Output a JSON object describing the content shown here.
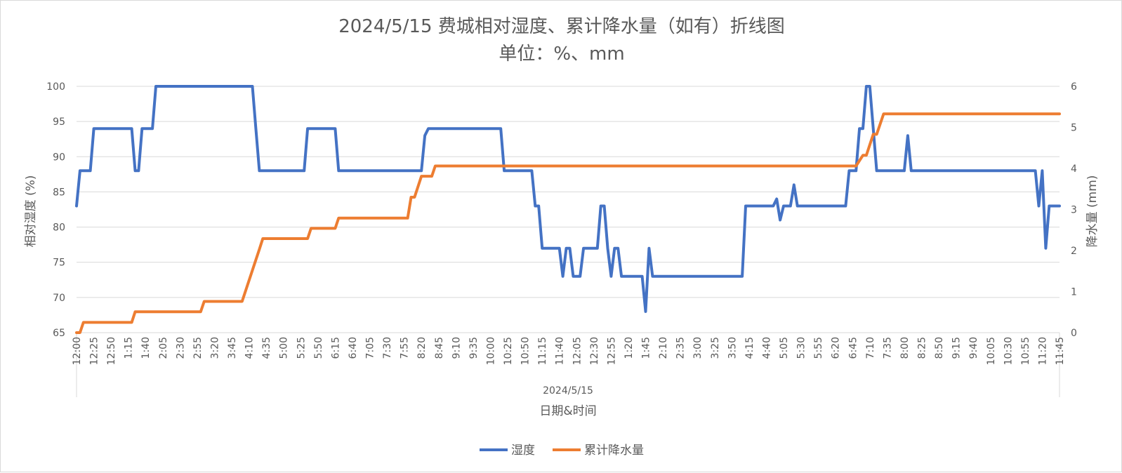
{
  "chart_data": {
    "type": "line",
    "title": "2024/5/15 费城相对湿度、累计降水量（如有）折线图",
    "subtitle": "单位：%、mm",
    "xlabel": "日期&时间",
    "x_group_label": "2024/5/15",
    "ylabel": "相对湿度 (%)",
    "y2label": "降水量 (mm)",
    "ylim": [
      65,
      100
    ],
    "y2lim": [
      0,
      6
    ],
    "y_ticks": [
      "65",
      "70",
      "75",
      "80",
      "85",
      "90",
      "95",
      "100"
    ],
    "y2_ticks": [
      "0",
      "1",
      "2",
      "3",
      "4",
      "5",
      "6"
    ],
    "x_tick_labels": [
      "12:00",
      "12:25",
      "12:50",
      "1:15",
      "1:40",
      "2:05",
      "2:30",
      "2:55",
      "3:20",
      "3:45",
      "4:10",
      "4:35",
      "5:00",
      "5:25",
      "5:50",
      "6:15",
      "6:40",
      "7:05",
      "7:30",
      "7:55",
      "8:20",
      "8:45",
      "9:10",
      "9:35",
      "10:00",
      "10:25",
      "10:50",
      "11:15",
      "11:40",
      "12:05",
      "12:30",
      "12:55",
      "1:20",
      "1:45",
      "2:10",
      "2:35",
      "3:00",
      "3:25",
      "3:50",
      "4:15",
      "4:40",
      "5:05",
      "5:30",
      "5:55",
      "6:20",
      "6:45",
      "7:10",
      "7:35",
      "8:00",
      "8:25",
      "8:50",
      "9:15",
      "9:40",
      "10:05",
      "10:30",
      "10:55",
      "11:20",
      "11:45"
    ],
    "x_range_minutes": [
      0,
      1425
    ],
    "grid": true,
    "legend_position": "bottom",
    "series": [
      {
        "name": "湿度",
        "axis": "left",
        "color": "#4472c4",
        "points": [
          [
            0,
            83
          ],
          [
            5,
            88
          ],
          [
            20,
            88
          ],
          [
            25,
            94
          ],
          [
            80,
            94
          ],
          [
            85,
            88
          ],
          [
            90,
            88
          ],
          [
            95,
            94
          ],
          [
            110,
            94
          ],
          [
            115,
            100
          ],
          [
            255,
            100
          ],
          [
            260,
            94
          ],
          [
            265,
            88
          ],
          [
            330,
            88
          ],
          [
            335,
            94
          ],
          [
            375,
            94
          ],
          [
            380,
            88
          ],
          [
            500,
            88
          ],
          [
            505,
            93
          ],
          [
            510,
            94
          ],
          [
            615,
            94
          ],
          [
            620,
            88
          ],
          [
            660,
            88
          ],
          [
            665,
            83
          ],
          [
            670,
            83
          ],
          [
            675,
            77
          ],
          [
            700,
            77
          ],
          [
            705,
            73
          ],
          [
            710,
            77
          ],
          [
            715,
            77
          ],
          [
            720,
            73
          ],
          [
            730,
            73
          ],
          [
            735,
            77
          ],
          [
            755,
            77
          ],
          [
            760,
            83
          ],
          [
            765,
            83
          ],
          [
            770,
            77
          ],
          [
            775,
            73
          ],
          [
            780,
            77
          ],
          [
            785,
            77
          ],
          [
            790,
            73
          ],
          [
            820,
            73
          ],
          [
            825,
            68
          ],
          [
            830,
            77
          ],
          [
            835,
            73
          ],
          [
            965,
            73
          ],
          [
            970,
            83
          ],
          [
            1010,
            83
          ],
          [
            1015,
            84
          ],
          [
            1020,
            81
          ],
          [
            1025,
            83
          ],
          [
            1035,
            83
          ],
          [
            1040,
            86
          ],
          [
            1045,
            83
          ],
          [
            1115,
            83
          ],
          [
            1120,
            88
          ],
          [
            1130,
            88
          ],
          [
            1135,
            94
          ],
          [
            1140,
            94
          ],
          [
            1145,
            100
          ],
          [
            1150,
            100
          ],
          [
            1155,
            94
          ],
          [
            1160,
            88
          ],
          [
            1200,
            88
          ],
          [
            1205,
            93
          ],
          [
            1210,
            88
          ],
          [
            1390,
            88
          ],
          [
            1395,
            83
          ],
          [
            1400,
            88
          ],
          [
            1405,
            77
          ],
          [
            1410,
            83
          ],
          [
            1425,
            83
          ]
        ]
      },
      {
        "name": "累计降水量",
        "axis": "right",
        "color": "#ed7d31",
        "points": [
          [
            0,
            0
          ],
          [
            5,
            0
          ],
          [
            10,
            0.25
          ],
          [
            80,
            0.25
          ],
          [
            85,
            0.51
          ],
          [
            180,
            0.51
          ],
          [
            185,
            0.76
          ],
          [
            240,
            0.76
          ],
          [
            255,
            1.52
          ],
          [
            265,
            2.03
          ],
          [
            270,
            2.29
          ],
          [
            335,
            2.29
          ],
          [
            340,
            2.54
          ],
          [
            375,
            2.54
          ],
          [
            380,
            2.79
          ],
          [
            480,
            2.79
          ],
          [
            485,
            3.3
          ],
          [
            490,
            3.3
          ],
          [
            500,
            3.81
          ],
          [
            515,
            3.81
          ],
          [
            520,
            4.06
          ],
          [
            1130,
            4.06
          ],
          [
            1140,
            4.32
          ],
          [
            1145,
            4.32
          ],
          [
            1155,
            4.83
          ],
          [
            1160,
            4.83
          ],
          [
            1170,
            5.33
          ],
          [
            1425,
            5.33
          ]
        ]
      }
    ]
  }
}
